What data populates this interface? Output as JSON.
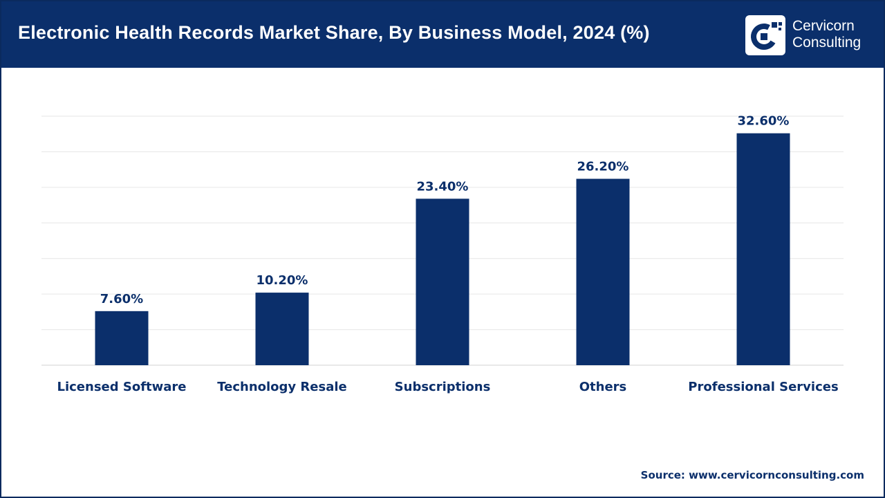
{
  "header": {
    "title": "Electronic Health Records Market Share, By Business Model, 2024 (%)",
    "logo_line1": "Cervicorn",
    "logo_line2": "Consulting",
    "background_color": "#0b2f6b"
  },
  "chart_data": {
    "type": "bar",
    "title": "Electronic Health Records Market Share, By Business Model, 2024 (%)",
    "categories": [
      "Licensed Software",
      "Technology Resale",
      "Subscriptions",
      "Others",
      "Professional Services"
    ],
    "values": [
      7.6,
      10.2,
      23.4,
      26.2,
      32.6
    ],
    "data_labels": [
      "7.60%",
      "10.20%",
      "23.40%",
      "26.20%",
      "32.60%"
    ],
    "xlabel": "",
    "ylabel": "",
    "ylim": [
      0,
      35
    ],
    "grid": true,
    "legend": "none",
    "bar_color": "#0b2f6b"
  },
  "footer": {
    "source": "Source: www.cervicornconsulting.com"
  }
}
